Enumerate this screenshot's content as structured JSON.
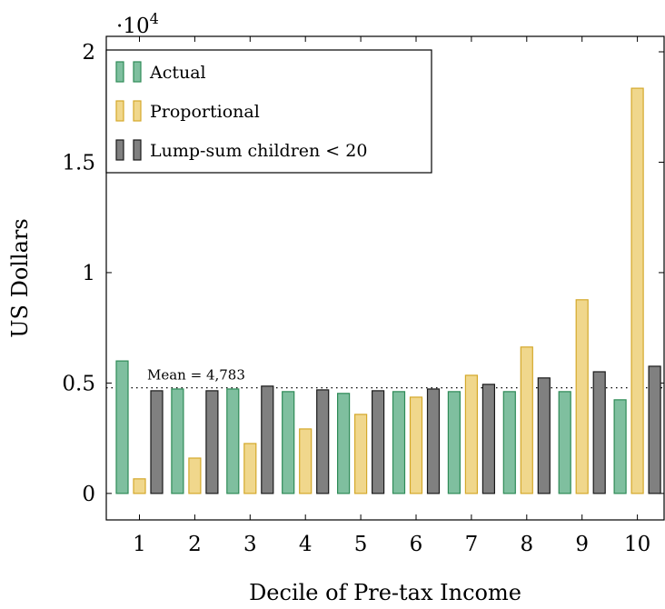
{
  "chart_data": {
    "type": "bar",
    "y_label": "US Dollars",
    "x_label": "Decile of Pre-tax Income",
    "y_scale_label": "·10",
    "y_scale_exponent": "4",
    "categories": [
      "1",
      "2",
      "3",
      "4",
      "5",
      "6",
      "7",
      "8",
      "9",
      "10"
    ],
    "series": [
      {
        "name": "Actual",
        "color": "#7fbf9f",
        "edge_color": "#2e8b57",
        "values": [
          6000,
          4730,
          4730,
          4610,
          4530,
          4610,
          4610,
          4610,
          4610,
          4240
        ]
      },
      {
        "name": "Proportional",
        "color": "#f0d78c",
        "edge_color": "#d4a82a",
        "values": [
          660,
          1600,
          2260,
          2920,
          3580,
          4360,
          5350,
          6630,
          8770,
          18350
        ]
      },
      {
        "name": "Lump-sum children < 20",
        "color": "#808080",
        "edge_color": "#1a1a1a",
        "values": [
          4650,
          4650,
          4860,
          4690,
          4650,
          4730,
          4940,
          5230,
          5510,
          5760
        ]
      }
    ],
    "ylim": [
      -1200,
      20700
    ],
    "yticks": [
      {
        "value": 0,
        "label": "0"
      },
      {
        "value": 5000,
        "label": "0.5"
      },
      {
        "value": 10000,
        "label": "1"
      },
      {
        "value": 15000,
        "label": "1.5"
      },
      {
        "value": 20000,
        "label": "2"
      }
    ],
    "mean_line": {
      "value": 4783,
      "label": "Mean = 4,783"
    },
    "legend_position": "upper left"
  }
}
